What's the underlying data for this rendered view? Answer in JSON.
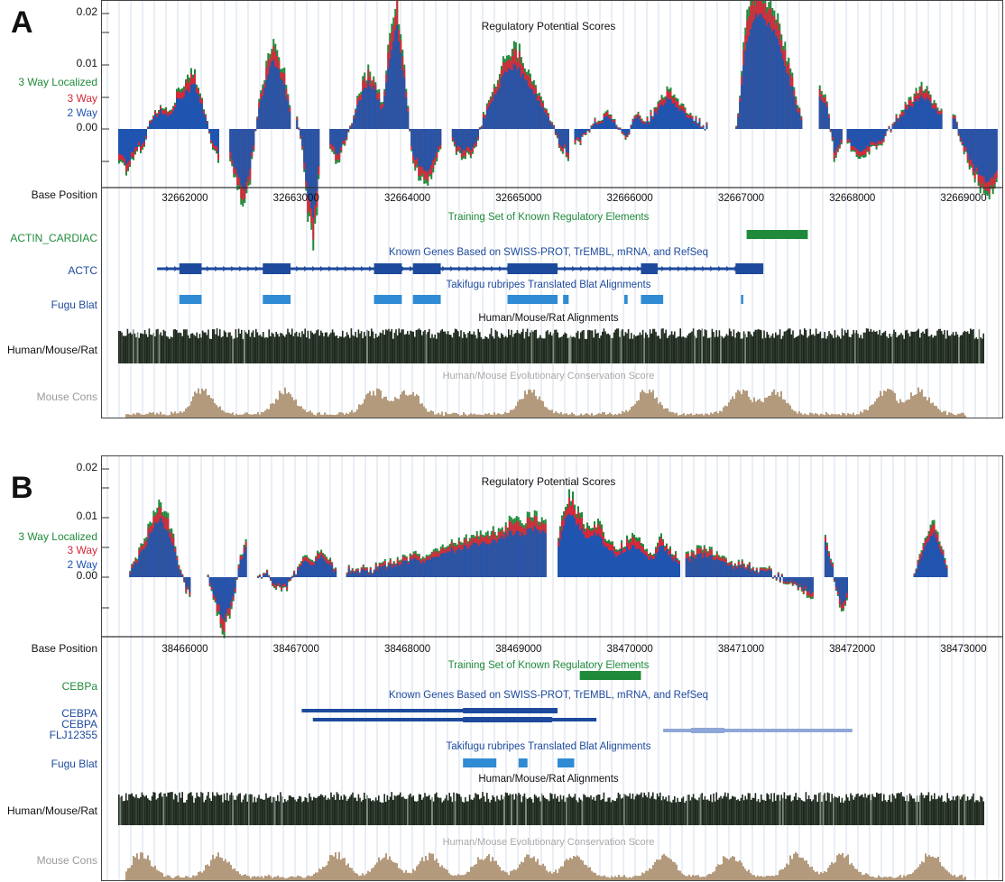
{
  "colors": {
    "three_way_localized": "#1f8a3a",
    "three_way": "#d6283a",
    "two_way": "#1f55b0",
    "training": "#1f8a3a",
    "genes": "#1d4a9c",
    "genes_light": "#8fa7d8",
    "fugu": "#2f8bd4",
    "alignments": "#1f2a1f",
    "conservation": "#b49a7c",
    "conservation_label": "#8c8c8c",
    "grid": "#cbd6ea"
  },
  "panels": [
    {
      "letter": "A",
      "y_ticks": [
        "0.02",
        "0.01",
        "0.00"
      ],
      "legend": [
        "3 Way Localized",
        "3 Way",
        "2 Way"
      ],
      "rp_title": "Regulatory Potential Scores",
      "base_position_label": "Base Position",
      "positions": [
        "32662000",
        "32663000",
        "32664000",
        "32665000",
        "32666000",
        "32667000",
        "32668000",
        "32669000"
      ],
      "training_title": "Training Set of Known Regulatory Elements",
      "training_label": "ACTIN_CARDIAC",
      "genes_title": "Known Genes Based on SWISS-PROT, TrEMBL, mRNA, and RefSeq",
      "gene_labels": [
        "ACTC"
      ],
      "fugu_title": "Takifugu rubripes Translated Blat Alignments",
      "fugu_label": "Fugu Blat",
      "align_title": "Human/Mouse/Rat Alignments",
      "align_label": "Human/Mouse/Rat",
      "cons_title": "Human/Mouse Evolutionary Conservation Score",
      "cons_label": "Mouse Cons"
    },
    {
      "letter": "B",
      "y_ticks": [
        "0.02",
        "0.01",
        "0.00"
      ],
      "legend": [
        "3 Way Localized",
        "3 Way",
        "2 Way"
      ],
      "rp_title": "Regulatory Potential Scores",
      "base_position_label": "Base Position",
      "positions": [
        "38466000",
        "38467000",
        "38468000",
        "38469000",
        "38470000",
        "38471000",
        "38472000",
        "38473000"
      ],
      "training_title": "Training Set of Known Regulatory Elements",
      "training_label": "CEBPa",
      "genes_title": "Known Genes Based on SWISS-PROT, TrEMBL, mRNA, and RefSeq",
      "gene_labels": [
        "CEBPA",
        "CEBPA",
        "FLJ12355"
      ],
      "fugu_title": "Takifugu rubripes Translated Blat Alignments",
      "fugu_label": "Fugu Blat",
      "align_title": "Human/Mouse/Rat Alignments",
      "align_label": "Human/Mouse/Rat",
      "cons_title": "Human/Mouse Evolutionary Conservation Score",
      "cons_label": "Mouse Cons"
    }
  ],
  "chart_data": [
    {
      "type": "area",
      "title": "Regulatory Potential Scores",
      "x_unit": "base position",
      "xlim": [
        32661400,
        32669300
      ],
      "ylim": [
        -0.01,
        0.02
      ],
      "series": [
        {
          "name": "3 Way Localized"
        },
        {
          "name": "3 Way"
        },
        {
          "name": "2 Way"
        }
      ],
      "rp_segments": [
        {
          "x": [
            32661400,
            32662300
          ],
          "profile": [
            -0.004,
            -0.006,
            -0.003,
            -0.002,
            0.002,
            0.003,
            0.002,
            0.005,
            0.006,
            0.008,
            0.004,
            -0.002,
            -0.004
          ]
        },
        {
          "x": [
            32662400,
            32662950
          ],
          "profile": [
            -0.004,
            -0.008,
            -0.011,
            -0.006,
            0.002,
            0.007,
            0.012,
            0.011,
            0.007,
            0.002
          ]
        },
        {
          "x": [
            32663000,
            32663200
          ],
          "profile": [
            0.002,
            -0.003,
            -0.012,
            -0.016,
            -0.006
          ]
        },
        {
          "x": [
            32663300,
            32664300
          ],
          "profile": [
            -0.003,
            -0.004,
            -0.002,
            0.001,
            0.005,
            0.008,
            0.007,
            0.003,
            0.012,
            0.018,
            0.008,
            -0.004,
            -0.006,
            -0.008,
            -0.005,
            -0.002
          ]
        },
        {
          "x": [
            32664400,
            32665450
          ],
          "profile": [
            -0.002,
            -0.004,
            -0.003,
            0.002,
            0.006,
            0.01,
            0.011,
            0.008,
            0.005,
            0.002,
            -0.002,
            -0.004
          ]
        },
        {
          "x": [
            32665500,
            32666700
          ],
          "profile": [
            -0.002,
            -0.001,
            0.001,
            0.002,
            0.001,
            -0.001,
            0.002,
            0.001,
            0.003,
            0.005,
            0.004,
            0.002,
            0.001,
            0.0
          ]
        },
        {
          "x": [
            32666950,
            32667550
          ],
          "profile": [
            0.0,
            0.014,
            0.02,
            0.019,
            0.017,
            0.012,
            0.006,
            0.0
          ]
        },
        {
          "x": [
            32667700,
            32667900
          ],
          "profile": [
            0.006,
            0.004,
            -0.004,
            -0.002
          ]
        },
        {
          "x": [
            32667950,
            32668800
          ],
          "profile": [
            -0.002,
            -0.004,
            -0.003,
            -0.002,
            0.0,
            0.002,
            0.004,
            0.006,
            0.004,
            0.002
          ]
        },
        {
          "x": [
            32668900,
            32669300
          ],
          "profile": [
            0.002,
            -0.003,
            -0.007,
            -0.009,
            -0.007
          ]
        }
      ],
      "known_regulatory_elements": [
        {
          "name": "ACTIN_CARDIAC",
          "start": 32667050,
          "end": 32667600
        }
      ],
      "genes": [
        {
          "name": "ACTC",
          "start": 32661750,
          "end": 32667200,
          "exons": [
            [
              32661950,
              32662150
            ],
            [
              32662700,
              32662950
            ],
            [
              32663700,
              32663950
            ],
            [
              32664050,
              32664300
            ],
            [
              32664900,
              32665350
            ],
            [
              32666100,
              32666250
            ],
            [
              32666950,
              32667200
            ]
          ]
        }
      ],
      "fugu_blat": [
        [
          32661950,
          32662150
        ],
        [
          32662700,
          32662950
        ],
        [
          32663700,
          32663950
        ],
        [
          32664050,
          32664300
        ],
        [
          32664900,
          32665350
        ],
        [
          32665400,
          32665450
        ],
        [
          32665950,
          32665980
        ],
        [
          32666100,
          32666300
        ],
        [
          32667000,
          32667020
        ]
      ],
      "conservation_peaks": [
        32662150,
        32662900,
        32663700,
        32664000,
        32665100,
        32666150,
        32667000,
        32667300,
        32668300,
        32668600
      ]
    },
    {
      "type": "area",
      "title": "Regulatory Potential Scores",
      "x_unit": "base position",
      "xlim": [
        38465400,
        38473300
      ],
      "ylim": [
        -0.01,
        0.02
      ],
      "series": [
        {
          "name": "3 Way Localized"
        },
        {
          "name": "3 Way"
        },
        {
          "name": "2 Way"
        }
      ],
      "rp_segments": [
        {
          "x": [
            38465500,
            38466050
          ],
          "profile": [
            0.001,
            0.003,
            0.006,
            0.009,
            0.011,
            0.008,
            0.004,
            -0.001,
            -0.003
          ]
        },
        {
          "x": [
            38466200,
            38466550
          ],
          "profile": [
            0.0,
            -0.004,
            -0.008,
            -0.005,
            0.002,
            0.006
          ]
        },
        {
          "x": [
            38466650,
            38467350
          ],
          "profile": [
            0.0,
            0.001,
            -0.001,
            -0.002,
            -0.001,
            0.001,
            0.003,
            0.002,
            0.004,
            0.003,
            0.001
          ]
        },
        {
          "x": [
            38467450,
            38469250
          ],
          "profile": [
            0.001,
            0.001,
            0.001,
            0.002,
            0.002,
            0.003,
            0.003,
            0.004,
            0.005,
            0.005,
            0.006,
            0.006,
            0.007,
            0.008,
            0.008,
            0.009,
            0.008
          ]
        },
        {
          "x": [
            38469350,
            38470450
          ],
          "profile": [
            0.006,
            0.012,
            0.01,
            0.007,
            0.008,
            0.006,
            0.004,
            0.005,
            0.006,
            0.004,
            0.003,
            0.006,
            0.004,
            0.002
          ]
        },
        {
          "x": [
            38470500,
            38471650
          ],
          "profile": [
            0.003,
            0.004,
            0.004,
            0.003,
            0.002,
            0.002,
            0.001,
            0.001,
            0.0,
            -0.001,
            -0.002,
            -0.003
          ]
        },
        {
          "x": [
            38471750,
            38471950
          ],
          "profile": [
            0.006,
            0.003,
            -0.002,
            -0.005,
            -0.003
          ]
        },
        {
          "x": [
            38472550,
            38472850
          ],
          "profile": [
            0.0,
            0.004,
            0.007,
            0.008,
            0.005,
            0.001
          ]
        }
      ],
      "known_regulatory_elements": [
        {
          "name": "CEBPa",
          "start": 38469550,
          "end": 38470100
        }
      ],
      "genes": [
        {
          "name": "CEBPA",
          "start": 38467050,
          "end": 38469350,
          "exons": [
            [
              38468500,
              38469350
            ]
          ]
        },
        {
          "name": "CEBPA",
          "start": 38467150,
          "end": 38469700,
          "exons": [
            [
              38468500,
              38469300
            ]
          ]
        },
        {
          "name": "FLJ12355",
          "start": 38470300,
          "end": 38472000,
          "exons": [
            [
              38470550,
              38470850
            ]
          ],
          "light": true
        }
      ],
      "fugu_blat": [
        [
          38468500,
          38468800
        ],
        [
          38469000,
          38469080
        ],
        [
          38469350,
          38469500
        ]
      ],
      "conservation_peaks": [
        38465600,
        38466300,
        38467350,
        38467800,
        38468200,
        38468700,
        38469100,
        38469500,
        38470300,
        38470900,
        38471500,
        38471900,
        38472700
      ]
    }
  ]
}
